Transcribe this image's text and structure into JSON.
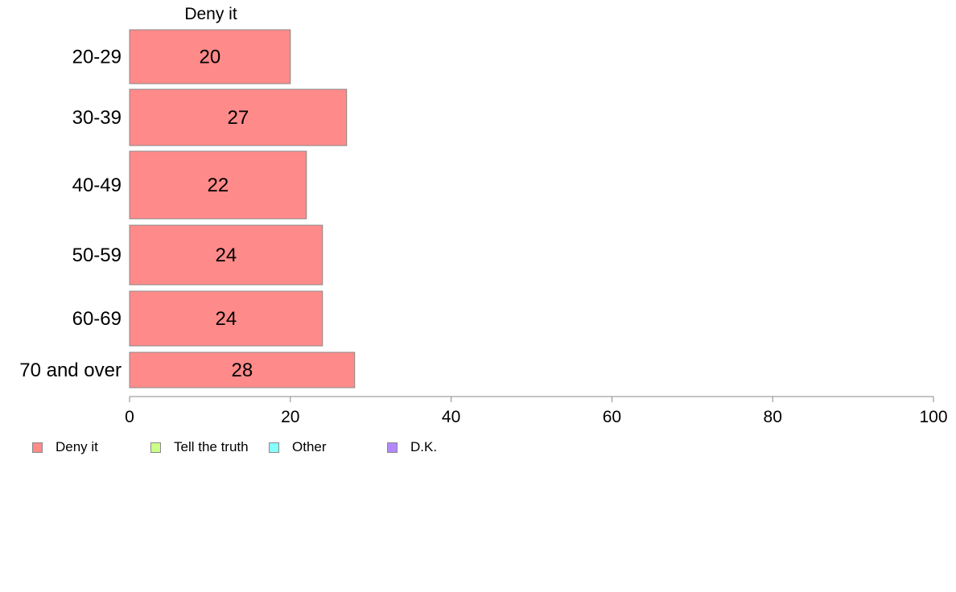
{
  "chart_data": {
    "type": "bar",
    "orientation": "horizontal",
    "title": "Deny it",
    "categories": [
      "20-29",
      "30-39",
      "40-49",
      "50-59",
      "60-69",
      "70 and over"
    ],
    "series": [
      {
        "name": "Deny it",
        "values": [
          20,
          27,
          22,
          24,
          24,
          28
        ],
        "color": "#ff8a8a"
      }
    ],
    "xlim": [
      0,
      100
    ],
    "xticks": [
      0,
      20,
      40,
      60,
      80,
      100
    ],
    "grid": false,
    "legend_placement": "bottom-left"
  },
  "legend": {
    "items": [
      {
        "label": "Deny it",
        "color": "#ff8a8a"
      },
      {
        "label": "Tell the truth",
        "color": "#ccff88"
      },
      {
        "label": "Other",
        "color": "#88ffff"
      },
      {
        "label": "D.K.",
        "color": "#b388ff"
      }
    ]
  }
}
